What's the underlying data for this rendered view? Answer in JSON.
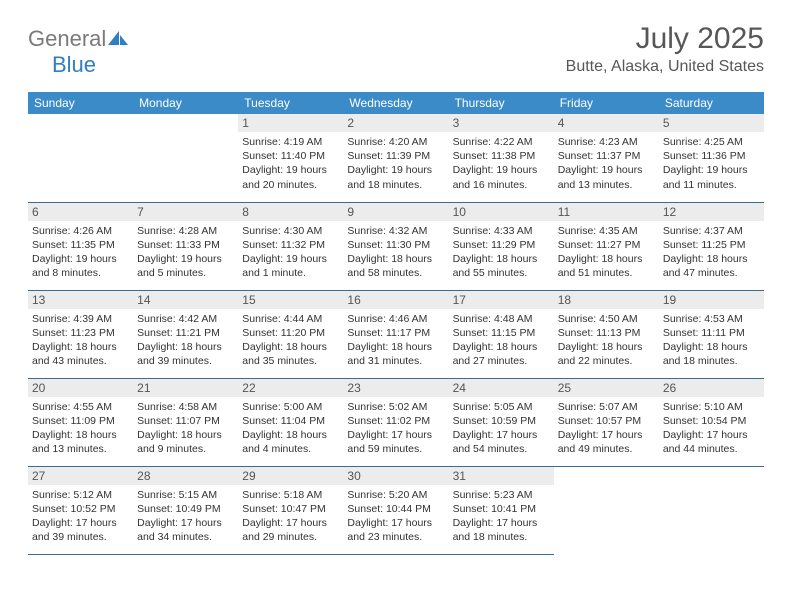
{
  "brand": {
    "text_general": "General",
    "text_blue": "Blue",
    "icon_color": "#2f7fc1"
  },
  "title": "July 2025",
  "location": "Butte, Alaska, United States",
  "columns": [
    "Sunday",
    "Monday",
    "Tuesday",
    "Wednesday",
    "Thursday",
    "Friday",
    "Saturday"
  ],
  "colors": {
    "header_bg": "#3b8bc9",
    "header_fg": "#ffffff",
    "daynum_bg": "#ececec",
    "rule": "#3b6a94"
  },
  "weeks": [
    [
      null,
      null,
      {
        "n": "1",
        "sr": "Sunrise: 4:19 AM",
        "ss": "Sunset: 11:40 PM",
        "d1": "Daylight: 19 hours",
        "d2": "and 20 minutes."
      },
      {
        "n": "2",
        "sr": "Sunrise: 4:20 AM",
        "ss": "Sunset: 11:39 PM",
        "d1": "Daylight: 19 hours",
        "d2": "and 18 minutes."
      },
      {
        "n": "3",
        "sr": "Sunrise: 4:22 AM",
        "ss": "Sunset: 11:38 PM",
        "d1": "Daylight: 19 hours",
        "d2": "and 16 minutes."
      },
      {
        "n": "4",
        "sr": "Sunrise: 4:23 AM",
        "ss": "Sunset: 11:37 PM",
        "d1": "Daylight: 19 hours",
        "d2": "and 13 minutes."
      },
      {
        "n": "5",
        "sr": "Sunrise: 4:25 AM",
        "ss": "Sunset: 11:36 PM",
        "d1": "Daylight: 19 hours",
        "d2": "and 11 minutes."
      }
    ],
    [
      {
        "n": "6",
        "sr": "Sunrise: 4:26 AM",
        "ss": "Sunset: 11:35 PM",
        "d1": "Daylight: 19 hours",
        "d2": "and 8 minutes."
      },
      {
        "n": "7",
        "sr": "Sunrise: 4:28 AM",
        "ss": "Sunset: 11:33 PM",
        "d1": "Daylight: 19 hours",
        "d2": "and 5 minutes."
      },
      {
        "n": "8",
        "sr": "Sunrise: 4:30 AM",
        "ss": "Sunset: 11:32 PM",
        "d1": "Daylight: 19 hours",
        "d2": "and 1 minute."
      },
      {
        "n": "9",
        "sr": "Sunrise: 4:32 AM",
        "ss": "Sunset: 11:30 PM",
        "d1": "Daylight: 18 hours",
        "d2": "and 58 minutes."
      },
      {
        "n": "10",
        "sr": "Sunrise: 4:33 AM",
        "ss": "Sunset: 11:29 PM",
        "d1": "Daylight: 18 hours",
        "d2": "and 55 minutes."
      },
      {
        "n": "11",
        "sr": "Sunrise: 4:35 AM",
        "ss": "Sunset: 11:27 PM",
        "d1": "Daylight: 18 hours",
        "d2": "and 51 minutes."
      },
      {
        "n": "12",
        "sr": "Sunrise: 4:37 AM",
        "ss": "Sunset: 11:25 PM",
        "d1": "Daylight: 18 hours",
        "d2": "and 47 minutes."
      }
    ],
    [
      {
        "n": "13",
        "sr": "Sunrise: 4:39 AM",
        "ss": "Sunset: 11:23 PM",
        "d1": "Daylight: 18 hours",
        "d2": "and 43 minutes."
      },
      {
        "n": "14",
        "sr": "Sunrise: 4:42 AM",
        "ss": "Sunset: 11:21 PM",
        "d1": "Daylight: 18 hours",
        "d2": "and 39 minutes."
      },
      {
        "n": "15",
        "sr": "Sunrise: 4:44 AM",
        "ss": "Sunset: 11:20 PM",
        "d1": "Daylight: 18 hours",
        "d2": "and 35 minutes."
      },
      {
        "n": "16",
        "sr": "Sunrise: 4:46 AM",
        "ss": "Sunset: 11:17 PM",
        "d1": "Daylight: 18 hours",
        "d2": "and 31 minutes."
      },
      {
        "n": "17",
        "sr": "Sunrise: 4:48 AM",
        "ss": "Sunset: 11:15 PM",
        "d1": "Daylight: 18 hours",
        "d2": "and 27 minutes."
      },
      {
        "n": "18",
        "sr": "Sunrise: 4:50 AM",
        "ss": "Sunset: 11:13 PM",
        "d1": "Daylight: 18 hours",
        "d2": "and 22 minutes."
      },
      {
        "n": "19",
        "sr": "Sunrise: 4:53 AM",
        "ss": "Sunset: 11:11 PM",
        "d1": "Daylight: 18 hours",
        "d2": "and 18 minutes."
      }
    ],
    [
      {
        "n": "20",
        "sr": "Sunrise: 4:55 AM",
        "ss": "Sunset: 11:09 PM",
        "d1": "Daylight: 18 hours",
        "d2": "and 13 minutes."
      },
      {
        "n": "21",
        "sr": "Sunrise: 4:58 AM",
        "ss": "Sunset: 11:07 PM",
        "d1": "Daylight: 18 hours",
        "d2": "and 9 minutes."
      },
      {
        "n": "22",
        "sr": "Sunrise: 5:00 AM",
        "ss": "Sunset: 11:04 PM",
        "d1": "Daylight: 18 hours",
        "d2": "and 4 minutes."
      },
      {
        "n": "23",
        "sr": "Sunrise: 5:02 AM",
        "ss": "Sunset: 11:02 PM",
        "d1": "Daylight: 17 hours",
        "d2": "and 59 minutes."
      },
      {
        "n": "24",
        "sr": "Sunrise: 5:05 AM",
        "ss": "Sunset: 10:59 PM",
        "d1": "Daylight: 17 hours",
        "d2": "and 54 minutes."
      },
      {
        "n": "25",
        "sr": "Sunrise: 5:07 AM",
        "ss": "Sunset: 10:57 PM",
        "d1": "Daylight: 17 hours",
        "d2": "and 49 minutes."
      },
      {
        "n": "26",
        "sr": "Sunrise: 5:10 AM",
        "ss": "Sunset: 10:54 PM",
        "d1": "Daylight: 17 hours",
        "d2": "and 44 minutes."
      }
    ],
    [
      {
        "n": "27",
        "sr": "Sunrise: 5:12 AM",
        "ss": "Sunset: 10:52 PM",
        "d1": "Daylight: 17 hours",
        "d2": "and 39 minutes."
      },
      {
        "n": "28",
        "sr": "Sunrise: 5:15 AM",
        "ss": "Sunset: 10:49 PM",
        "d1": "Daylight: 17 hours",
        "d2": "and 34 minutes."
      },
      {
        "n": "29",
        "sr": "Sunrise: 5:18 AM",
        "ss": "Sunset: 10:47 PM",
        "d1": "Daylight: 17 hours",
        "d2": "and 29 minutes."
      },
      {
        "n": "30",
        "sr": "Sunrise: 5:20 AM",
        "ss": "Sunset: 10:44 PM",
        "d1": "Daylight: 17 hours",
        "d2": "and 23 minutes."
      },
      {
        "n": "31",
        "sr": "Sunrise: 5:23 AM",
        "ss": "Sunset: 10:41 PM",
        "d1": "Daylight: 17 hours",
        "d2": "and 18 minutes."
      },
      null,
      null
    ]
  ]
}
